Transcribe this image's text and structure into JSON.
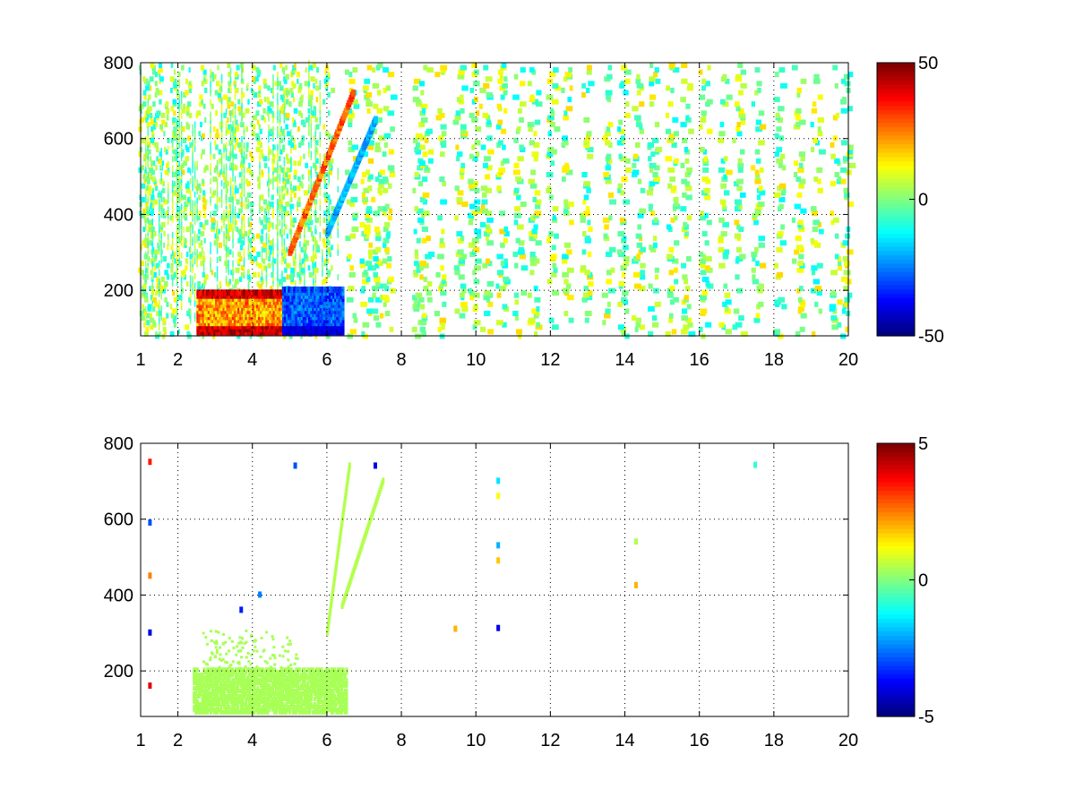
{
  "figure": {
    "background": "#ffffff"
  },
  "chart_data": [
    {
      "type": "heatmap",
      "panel": "top",
      "title": "",
      "xlabel": "",
      "ylabel": "",
      "xlim": [
        1,
        20
      ],
      "ylim": [
        80,
        800
      ],
      "x_ticks": [
        1,
        2,
        4,
        6,
        8,
        10,
        12,
        14,
        16,
        18,
        20
      ],
      "y_ticks": [
        200,
        400,
        600,
        800
      ],
      "grid": true,
      "colorbar": {
        "colormap": "jet",
        "min": -50,
        "max": 50,
        "ticks": [
          -50,
          0,
          50
        ]
      },
      "patterns": {
        "vertical_streaks_x": [
          1.05,
          1.2,
          1.35,
          1.6,
          1.9,
          2.2,
          2.6,
          3.0,
          3.3,
          3.6,
          3.9,
          4.2,
          4.5,
          4.8,
          5.0,
          5.3,
          5.6,
          6.0,
          6.6,
          7.0,
          7.3,
          7.6,
          8.4,
          8.6,
          9.0,
          9.5,
          9.9,
          10.2,
          10.65,
          11.1,
          11.5,
          12.0,
          12.4,
          12.9,
          13.5,
          13.9,
          14.3,
          14.7,
          15.2,
          15.6,
          16.1,
          16.6,
          17.0,
          17.5,
          18.1,
          18.6,
          19.1,
          19.6,
          19.9
        ],
        "warm_band_rows": [
          [
            2.5,
            6.0,
            90,
            200
          ]
        ],
        "cool_band_rows": [
          [
            4.8,
            6.4,
            90,
            210
          ]
        ],
        "diagonal_ridges": [
          [
            5.0,
            300,
            6.7,
            720
          ],
          [
            6.0,
            350,
            7.3,
            650
          ]
        ],
        "color_range_note": ""
      }
    },
    {
      "type": "heatmap",
      "panel": "bottom",
      "title": "",
      "xlabel": "",
      "ylabel": "",
      "xlim": [
        1,
        20
      ],
      "ylim": [
        80,
        800
      ],
      "x_ticks": [
        1,
        2,
        4,
        6,
        8,
        10,
        12,
        14,
        16,
        18,
        20
      ],
      "y_ticks": [
        200,
        400,
        600,
        800
      ],
      "grid": true,
      "colorbar": {
        "colormap": "jet",
        "min": -5,
        "max": 5,
        "ticks": [
          -5,
          0,
          5
        ]
      },
      "patterns": {
        "base_band": [
          2.4,
          6.5,
          90,
          205
        ],
        "upper_scatter": [
          2.6,
          5.2,
          205,
          310
        ],
        "diagonal_ridges": [
          [
            6.0,
            300,
            6.6,
            740
          ],
          [
            6.4,
            370,
            7.5,
            700
          ]
        ],
        "isolated_points": [
          [
            1.25,
            750,
            3.5
          ],
          [
            1.25,
            590,
            -3.0
          ],
          [
            1.25,
            450,
            2.5
          ],
          [
            1.25,
            300,
            -4.0
          ],
          [
            1.25,
            160,
            4.0
          ],
          [
            3.7,
            360,
            -3.5
          ],
          [
            4.2,
            400,
            -2.5
          ],
          [
            5.15,
            740,
            -3.0
          ],
          [
            7.3,
            740,
            -4.0
          ],
          [
            9.45,
            310,
            2.0
          ],
          [
            10.6,
            700,
            -1.5
          ],
          [
            10.6,
            660,
            1.2
          ],
          [
            10.6,
            530,
            -2.0
          ],
          [
            10.6,
            490,
            1.8
          ],
          [
            10.6,
            312,
            -4.0
          ],
          [
            14.3,
            540,
            0.5
          ],
          [
            14.3,
            425,
            2.0
          ],
          [
            17.5,
            742,
            -0.8
          ]
        ]
      }
    }
  ]
}
